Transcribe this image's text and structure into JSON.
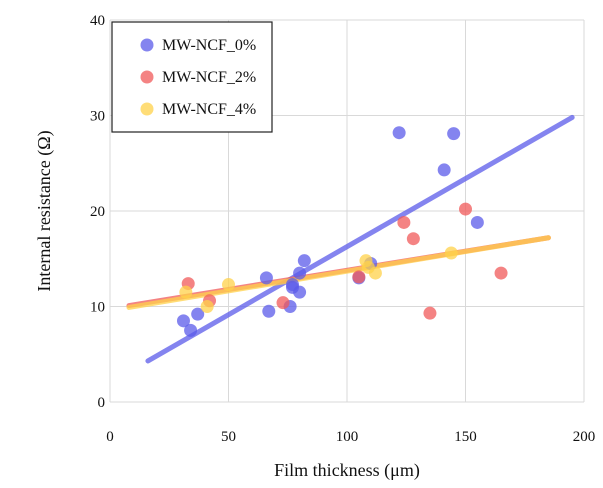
{
  "chart_data": {
    "type": "scatter",
    "xlabel": "Film thickness (μm)",
    "ylabel": "Internal resistance (Ω)",
    "xlim": [
      0,
      200
    ],
    "ylim": [
      0,
      40
    ],
    "xticks": [
      0,
      50,
      100,
      150,
      200
    ],
    "yticks": [
      0,
      10,
      20,
      30,
      40
    ],
    "grid": true,
    "legend_position": "top-left",
    "series": [
      {
        "name": "MW-NCF_0%",
        "color": "#5b5bea",
        "points": [
          [
            31,
            8.5
          ],
          [
            34,
            7.5
          ],
          [
            37,
            9.2
          ],
          [
            66,
            13.0
          ],
          [
            67,
            9.5
          ],
          [
            76,
            10.0
          ],
          [
            77,
            12.0
          ],
          [
            77,
            12.3
          ],
          [
            80,
            13.5
          ],
          [
            80,
            11.5
          ],
          [
            82,
            14.8
          ],
          [
            105,
            13.0
          ],
          [
            110,
            14.5
          ],
          [
            122,
            28.2
          ],
          [
            141,
            24.3
          ],
          [
            145,
            28.1
          ],
          [
            155,
            18.8
          ]
        ],
        "trend": [
          [
            16,
            4.3
          ],
          [
            195,
            29.8
          ]
        ]
      },
      {
        "name": "MW-NCF_2%",
        "color": "#f05a5a",
        "points": [
          [
            33,
            12.4
          ],
          [
            42,
            10.6
          ],
          [
            73,
            10.4
          ],
          [
            105,
            13.1
          ],
          [
            124,
            18.8
          ],
          [
            128,
            17.1
          ],
          [
            135,
            9.3
          ],
          [
            150,
            20.2
          ],
          [
            165,
            13.5
          ]
        ],
        "trend": [
          [
            8,
            10.1
          ],
          [
            185,
            17.2
          ]
        ]
      },
      {
        "name": "MW-NCF_4%",
        "color": "#ffd24a",
        "points": [
          [
            32,
            11.5
          ],
          [
            41,
            10.0
          ],
          [
            50,
            12.3
          ],
          [
            108,
            14.8
          ],
          [
            109,
            14.1
          ],
          [
            112,
            13.5
          ],
          [
            144,
            15.6
          ]
        ],
        "trend": [
          [
            8,
            9.9
          ],
          [
            185,
            17.2
          ]
        ]
      }
    ]
  }
}
